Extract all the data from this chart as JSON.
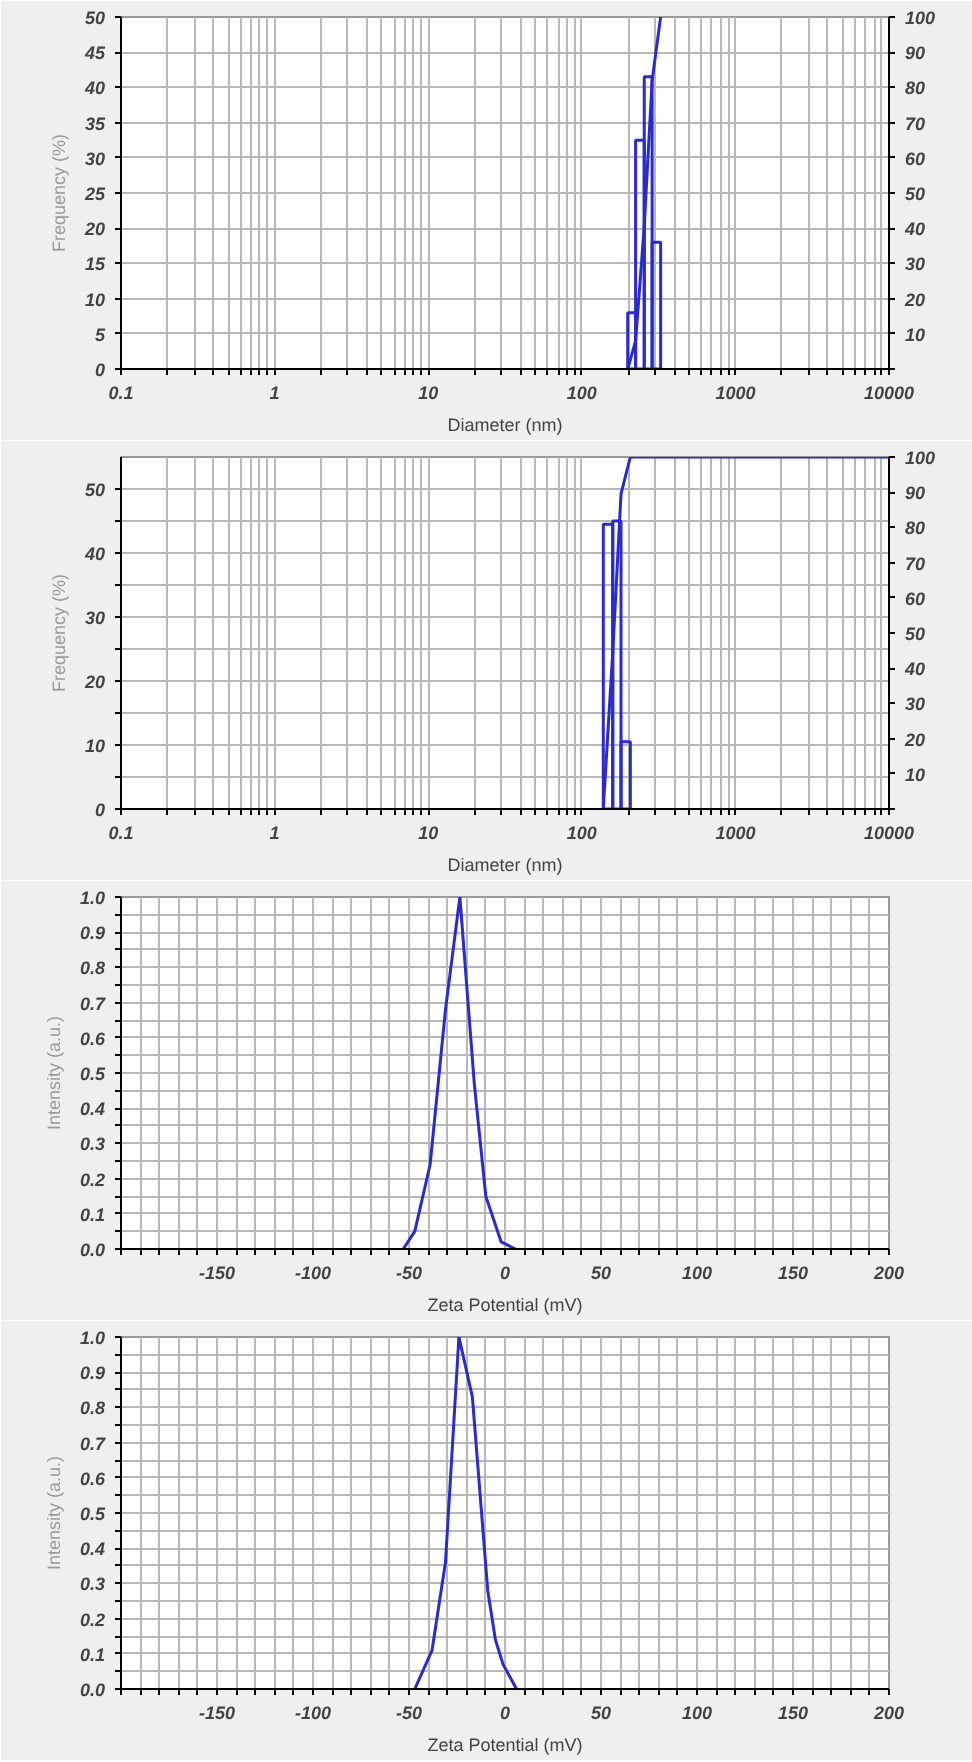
{
  "chart_data": [
    {
      "type": "histogram",
      "xlabel": "Diameter (nm)",
      "ylabel": "Frequency (%)",
      "log": "x",
      "grid": true,
      "color": "#2a2ad0",
      "bins": [
        199,
        224,
        255,
        287,
        326
      ],
      "values": [
        8,
        32.5,
        41.5,
        18
      ],
      "series": [
        {
          "type": "line",
          "axis": "y2",
          "color": "#2a2ad0",
          "x": [
            199,
            224,
            255,
            287,
            326
          ],
          "values": [
            0,
            8,
            40.5,
            82,
            100
          ]
        }
      ],
      "xlim": [
        0.1,
        10000
      ],
      "xticks": [
        0.1,
        {
          "value": 0.2,
          "label": null
        },
        {
          "value": 0.3,
          "label": null
        },
        {
          "value": 0.4,
          "label": null
        },
        {
          "value": 0.5,
          "label": null
        },
        {
          "value": 0.6,
          "label": null
        },
        {
          "value": 0.7,
          "label": null
        },
        {
          "value": 0.8,
          "label": null
        },
        {
          "value": 0.9,
          "label": null
        },
        1,
        {
          "value": 2,
          "label": null
        },
        {
          "value": 3,
          "label": null
        },
        {
          "value": 4,
          "label": null
        },
        {
          "value": 5,
          "label": null
        },
        {
          "value": 6,
          "label": null
        },
        {
          "value": 7,
          "label": null
        },
        {
          "value": 8,
          "label": null
        },
        {
          "value": 9,
          "label": null
        },
        10,
        {
          "value": 20,
          "label": null
        },
        {
          "value": 30,
          "label": null
        },
        {
          "value": 40,
          "label": null
        },
        {
          "value": 50,
          "label": null
        },
        {
          "value": 60,
          "label": null
        },
        {
          "value": 70,
          "label": null
        },
        {
          "value": 80,
          "label": null
        },
        {
          "value": 90,
          "label": null
        },
        100,
        {
          "value": 200,
          "label": null
        },
        {
          "value": 300,
          "label": null
        },
        {
          "value": 400,
          "label": null
        },
        {
          "value": 500,
          "label": null
        },
        {
          "value": 600,
          "label": null
        },
        {
          "value": 700,
          "label": null
        },
        {
          "value": 800,
          "label": null
        },
        {
          "value": 900,
          "label": null
        },
        1000,
        {
          "value": 2000,
          "label": null
        },
        {
          "value": 3000,
          "label": null
        },
        {
          "value": 4000,
          "label": null
        },
        {
          "value": 5000,
          "label": null
        },
        {
          "value": 6000,
          "label": null
        },
        {
          "value": 7000,
          "label": null
        },
        {
          "value": 8000,
          "label": null
        },
        {
          "value": 9000,
          "label": null
        },
        10000
      ],
      "ylim": [
        0,
        50
      ],
      "yticks": [
        0,
        5,
        10,
        15,
        20,
        25,
        30,
        35,
        40,
        45,
        50
      ],
      "y2lim": [
        0,
        100
      ],
      "y2ticks": [
        {
          "value": 0,
          "label": null
        },
        10,
        20,
        30,
        40,
        50,
        60,
        70,
        80,
        90,
        100
      ]
    },
    {
      "type": "histogram",
      "xlabel": "Diameter (nm)",
      "ylabel": "Frequency (%)",
      "log": "x",
      "grid": true,
      "color": "#2a2ad0",
      "bins": [
        138,
        159,
        180,
        207
      ],
      "values": [
        44.5,
        45,
        10.5
      ],
      "series": [
        {
          "type": "line",
          "axis": "y2",
          "color": "#2a2ad0",
          "x": [
            138,
            159,
            180,
            207,
            10000
          ],
          "values": [
            0,
            44.5,
            89.5,
            100,
            100
          ]
        }
      ],
      "xlim": [
        0.1,
        10000
      ],
      "xticks": [
        0.1,
        {
          "value": 0.2,
          "label": null
        },
        {
          "value": 0.3,
          "label": null
        },
        {
          "value": 0.4,
          "label": null
        },
        {
          "value": 0.5,
          "label": null
        },
        {
          "value": 0.6,
          "label": null
        },
        {
          "value": 0.7,
          "label": null
        },
        {
          "value": 0.8,
          "label": null
        },
        {
          "value": 0.9,
          "label": null
        },
        1,
        {
          "value": 2,
          "label": null
        },
        {
          "value": 3,
          "label": null
        },
        {
          "value": 4,
          "label": null
        },
        {
          "value": 5,
          "label": null
        },
        {
          "value": 6,
          "label": null
        },
        {
          "value": 7,
          "label": null
        },
        {
          "value": 8,
          "label": null
        },
        {
          "value": 9,
          "label": null
        },
        10,
        {
          "value": 20,
          "label": null
        },
        {
          "value": 30,
          "label": null
        },
        {
          "value": 40,
          "label": null
        },
        {
          "value": 50,
          "label": null
        },
        {
          "value": 60,
          "label": null
        },
        {
          "value": 70,
          "label": null
        },
        {
          "value": 80,
          "label": null
        },
        {
          "value": 90,
          "label": null
        },
        100,
        {
          "value": 200,
          "label": null
        },
        {
          "value": 300,
          "label": null
        },
        {
          "value": 400,
          "label": null
        },
        {
          "value": 500,
          "label": null
        },
        {
          "value": 600,
          "label": null
        },
        {
          "value": 700,
          "label": null
        },
        {
          "value": 800,
          "label": null
        },
        {
          "value": 900,
          "label": null
        },
        1000,
        {
          "value": 2000,
          "label": null
        },
        {
          "value": 3000,
          "label": null
        },
        {
          "value": 4000,
          "label": null
        },
        {
          "value": 5000,
          "label": null
        },
        {
          "value": 6000,
          "label": null
        },
        {
          "value": 7000,
          "label": null
        },
        {
          "value": 8000,
          "label": null
        },
        {
          "value": 9000,
          "label": null
        },
        10000
      ],
      "ylim": [
        0,
        55
      ],
      "yticks": [
        0,
        {
          "value": 5,
          "label": null
        },
        10,
        {
          "value": 15,
          "label": null
        },
        20,
        {
          "value": 25,
          "label": null
        },
        30,
        {
          "value": 35,
          "label": null
        },
        40,
        {
          "value": 45,
          "label": null
        },
        50
      ],
      "y2lim": [
        0,
        100
      ],
      "y2ticks": [
        {
          "value": 0,
          "label": null
        },
        10,
        20,
        30,
        40,
        50,
        60,
        70,
        80,
        90,
        100
      ]
    },
    {
      "type": "line",
      "xlabel": "Zeta Potential (mV)",
      "ylabel": "Intensity (a.u.)",
      "grid": true,
      "line_style": "solid",
      "marker": "none",
      "series": [
        {
          "color": "#2a2ad0",
          "x": [
            -53,
            -47,
            -39,
            -31,
            -23.5,
            -16,
            -10,
            -2,
            5.5
          ],
          "values": [
            0,
            0.05,
            0.24,
            0.68,
            1.0,
            0.47,
            0.15,
            0.02,
            0
          ]
        }
      ],
      "xlim": [
        -200,
        200
      ],
      "xticks": [
        {
          "value": -200,
          "label": null
        },
        {
          "value": -190,
          "label": null
        },
        {
          "value": -180,
          "label": null
        },
        {
          "value": -170,
          "label": null
        },
        {
          "value": -160,
          "label": null
        },
        -150,
        {
          "value": -140,
          "label": null
        },
        {
          "value": -130,
          "label": null
        },
        {
          "value": -120,
          "label": null
        },
        {
          "value": -110,
          "label": null
        },
        -100,
        {
          "value": -90,
          "label": null
        },
        {
          "value": -80,
          "label": null
        },
        {
          "value": -70,
          "label": null
        },
        {
          "value": -60,
          "label": null
        },
        -50,
        {
          "value": -40,
          "label": null
        },
        {
          "value": -30,
          "label": null
        },
        {
          "value": -20,
          "label": null
        },
        {
          "value": -10,
          "label": null
        },
        0,
        {
          "value": 10,
          "label": null
        },
        {
          "value": 20,
          "label": null
        },
        {
          "value": 30,
          "label": null
        },
        {
          "value": 40,
          "label": null
        },
        50,
        {
          "value": 60,
          "label": null
        },
        {
          "value": 70,
          "label": null
        },
        {
          "value": 80,
          "label": null
        },
        {
          "value": 90,
          "label": null
        },
        100,
        {
          "value": 110,
          "label": null
        },
        {
          "value": 120,
          "label": null
        },
        {
          "value": 130,
          "label": null
        },
        {
          "value": 140,
          "label": null
        },
        150,
        {
          "value": 160,
          "label": null
        },
        {
          "value": 170,
          "label": null
        },
        {
          "value": 180,
          "label": null
        },
        {
          "value": 190,
          "label": null
        },
        200
      ],
      "ylim": [
        0,
        1
      ],
      "yticks": [
        {
          "value": 0,
          "label": "0.0"
        },
        {
          "value": 0.05,
          "label": null
        },
        0.1,
        {
          "value": 0.15,
          "label": null
        },
        0.2,
        {
          "value": 0.25,
          "label": null
        },
        0.3,
        {
          "value": 0.35,
          "label": null
        },
        0.4,
        {
          "value": 0.45,
          "label": null
        },
        0.5,
        {
          "value": 0.55,
          "label": null
        },
        0.6,
        {
          "value": 0.65,
          "label": null
        },
        0.7,
        {
          "value": 0.75,
          "label": null
        },
        0.8,
        {
          "value": 0.85,
          "label": null
        },
        0.9,
        {
          "value": 0.95,
          "label": null
        },
        {
          "value": 1,
          "label": "1.0"
        }
      ]
    },
    {
      "type": "line",
      "xlabel": "Zeta Potential (mV)",
      "ylabel": "Intensity (a.u.)",
      "grid": true,
      "line_style": "solid",
      "marker": "none",
      "series": [
        {
          "color": "#2a2ad0",
          "x": [
            -47,
            -38,
            -31,
            -24,
            -17,
            -9,
            -5,
            -1,
            6
          ],
          "values": [
            0,
            0.11,
            0.36,
            1.0,
            0.83,
            0.28,
            0.14,
            0.07,
            0
          ]
        }
      ],
      "xlim": [
        -200,
        200
      ],
      "xticks": [
        {
          "value": -200,
          "label": null
        },
        {
          "value": -190,
          "label": null
        },
        {
          "value": -180,
          "label": null
        },
        {
          "value": -170,
          "label": null
        },
        {
          "value": -160,
          "label": null
        },
        -150,
        {
          "value": -140,
          "label": null
        },
        {
          "value": -130,
          "label": null
        },
        {
          "value": -120,
          "label": null
        },
        {
          "value": -110,
          "label": null
        },
        -100,
        {
          "value": -90,
          "label": null
        },
        {
          "value": -80,
          "label": null
        },
        {
          "value": -70,
          "label": null
        },
        {
          "value": -60,
          "label": null
        },
        -50,
        {
          "value": -40,
          "label": null
        },
        {
          "value": -30,
          "label": null
        },
        {
          "value": -20,
          "label": null
        },
        {
          "value": -10,
          "label": null
        },
        0,
        {
          "value": 10,
          "label": null
        },
        {
          "value": 20,
          "label": null
        },
        {
          "value": 30,
          "label": null
        },
        {
          "value": 40,
          "label": null
        },
        50,
        {
          "value": 60,
          "label": null
        },
        {
          "value": 70,
          "label": null
        },
        {
          "value": 80,
          "label": null
        },
        {
          "value": 90,
          "label": null
        },
        100,
        {
          "value": 110,
          "label": null
        },
        {
          "value": 120,
          "label": null
        },
        {
          "value": 130,
          "label": null
        },
        {
          "value": 140,
          "label": null
        },
        150,
        {
          "value": 160,
          "label": null
        },
        {
          "value": 170,
          "label": null
        },
        {
          "value": 180,
          "label": null
        },
        {
          "value": 190,
          "label": null
        },
        200
      ],
      "ylim": [
        0,
        1
      ],
      "yticks": [
        {
          "value": 0,
          "label": "0.0"
        },
        {
          "value": 0.05,
          "label": null
        },
        0.1,
        {
          "value": 0.15,
          "label": null
        },
        0.2,
        {
          "value": 0.25,
          "label": null
        },
        0.3,
        {
          "value": 0.35,
          "label": null
        },
        0.4,
        {
          "value": 0.45,
          "label": null
        },
        0.5,
        {
          "value": 0.55,
          "label": null
        },
        0.6,
        {
          "value": 0.65,
          "label": null
        },
        0.7,
        {
          "value": 0.75,
          "label": null
        },
        0.8,
        {
          "value": 0.85,
          "label": null
        },
        0.9,
        {
          "value": 0.95,
          "label": null
        },
        {
          "value": 1,
          "label": "1.0"
        }
      ]
    }
  ]
}
